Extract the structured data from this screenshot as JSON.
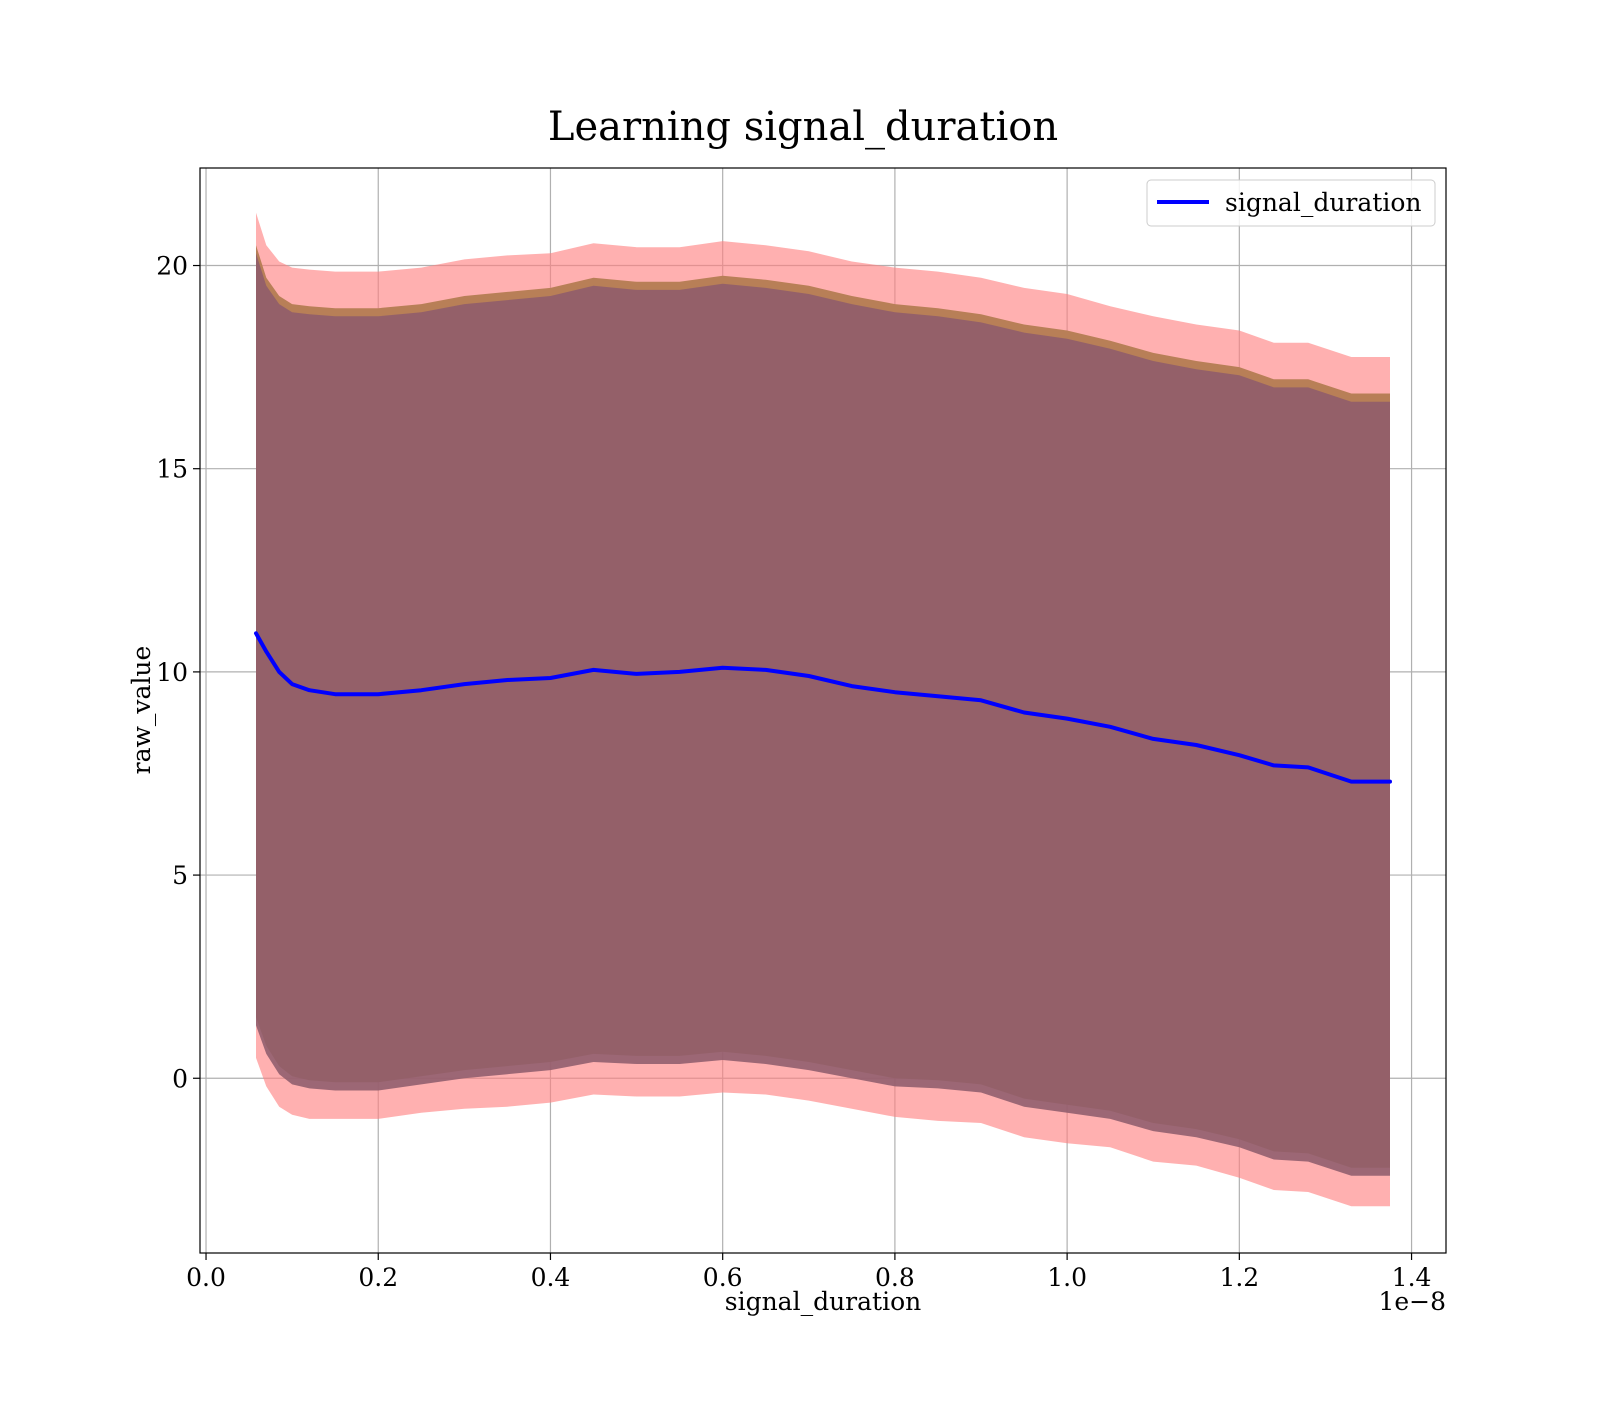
{
  "chart_data": {
    "type": "area",
    "title": "Learning signal_duration",
    "xlabel": "signal_duration",
    "ylabel": "raw_value",
    "x_offset_text": "1e−8",
    "xlim": [
      -0.007,
      1.44
    ],
    "ylim": [
      -4.3,
      22.4
    ],
    "xticks": [
      0.0,
      0.2,
      0.4,
      0.6,
      0.8,
      1.0,
      1.2,
      1.4
    ],
    "xtick_labels": [
      "0.0",
      "0.2",
      "0.4",
      "0.6",
      "0.8",
      "1.0",
      "1.2",
      "1.4"
    ],
    "yticks": [
      0,
      5,
      10,
      15,
      20
    ],
    "ytick_labels": [
      "0",
      "5",
      "10",
      "15",
      "20"
    ],
    "grid": true,
    "legend": {
      "position": "top-right",
      "label": "signal_duration"
    },
    "colors": {
      "line": "#0000ff",
      "outer_band": "#ff7f7f",
      "middle_band": "#b87f57",
      "inner_band": "#8e5c6c",
      "grid": "#b0b0b0"
    },
    "x": [
      0.058,
      0.07,
      0.085,
      0.1,
      0.12,
      0.15,
      0.2,
      0.25,
      0.3,
      0.35,
      0.4,
      0.45,
      0.5,
      0.55,
      0.6,
      0.65,
      0.7,
      0.75,
      0.8,
      0.85,
      0.9,
      0.95,
      1.0,
      1.05,
      1.1,
      1.15,
      1.2,
      1.24,
      1.28,
      1.33,
      1.375
    ],
    "series": [
      {
        "name": "signal_duration",
        "values": [
          10.95,
          10.5,
          10.0,
          9.7,
          9.55,
          9.45,
          9.45,
          9.55,
          9.7,
          9.8,
          9.85,
          10.05,
          9.95,
          10.0,
          10.1,
          10.05,
          9.9,
          9.65,
          9.5,
          9.4,
          9.3,
          9.0,
          8.85,
          8.65,
          8.35,
          8.2,
          7.95,
          7.7,
          7.65,
          7.3,
          7.3
        ]
      }
    ],
    "bands": [
      {
        "upper": [
          21.3,
          20.5,
          20.1,
          19.95,
          19.9,
          19.85,
          19.85,
          19.95,
          20.15,
          20.25,
          20.3,
          20.55,
          20.45,
          20.45,
          20.6,
          20.5,
          20.35,
          20.1,
          19.95,
          19.85,
          19.7,
          19.45,
          19.3,
          19.0,
          18.75,
          18.55,
          18.4,
          18.1,
          18.1,
          17.75,
          17.75
        ],
        "lower": [
          0.5,
          -0.2,
          -0.7,
          -0.9,
          -1.0,
          -1.0,
          -1.0,
          -0.85,
          -0.75,
          -0.7,
          -0.6,
          -0.4,
          -0.45,
          -0.45,
          -0.35,
          -0.4,
          -0.55,
          -0.75,
          -0.95,
          -1.05,
          -1.1,
          -1.45,
          -1.6,
          -1.7,
          -2.05,
          -2.15,
          -2.45,
          -2.75,
          -2.8,
          -3.15,
          -3.15
        ]
      },
      {
        "upper": [
          20.5,
          19.7,
          19.25,
          19.05,
          19.0,
          18.95,
          18.95,
          19.05,
          19.25,
          19.35,
          19.45,
          19.7,
          19.6,
          19.6,
          19.75,
          19.65,
          19.5,
          19.25,
          19.05,
          18.95,
          18.8,
          18.55,
          18.4,
          18.15,
          17.85,
          17.65,
          17.5,
          17.2,
          17.2,
          16.85,
          16.85
        ],
        "lower": [
          1.5,
          0.8,
          0.3,
          0.05,
          -0.05,
          -0.1,
          -0.1,
          0.05,
          0.2,
          0.3,
          0.4,
          0.6,
          0.55,
          0.55,
          0.65,
          0.55,
          0.4,
          0.2,
          0.0,
          -0.05,
          -0.15,
          -0.5,
          -0.65,
          -0.8,
          -1.1,
          -1.25,
          -1.5,
          -1.8,
          -1.85,
          -2.2,
          -2.2
        ]
      },
      {
        "upper": [
          20.3,
          19.5,
          19.05,
          18.85,
          18.8,
          18.75,
          18.75,
          18.85,
          19.05,
          19.15,
          19.25,
          19.5,
          19.4,
          19.4,
          19.55,
          19.45,
          19.3,
          19.05,
          18.85,
          18.75,
          18.6,
          18.35,
          18.2,
          17.95,
          17.65,
          17.45,
          17.3,
          17.0,
          17.0,
          16.65,
          16.65
        ],
        "lower": [
          1.3,
          0.6,
          0.1,
          -0.15,
          -0.25,
          -0.3,
          -0.3,
          -0.15,
          0.0,
          0.1,
          0.2,
          0.4,
          0.35,
          0.35,
          0.45,
          0.35,
          0.2,
          0.0,
          -0.2,
          -0.25,
          -0.35,
          -0.7,
          -0.85,
          -1.0,
          -1.3,
          -1.45,
          -1.7,
          -2.0,
          -2.05,
          -2.4,
          -2.4
        ]
      }
    ]
  }
}
